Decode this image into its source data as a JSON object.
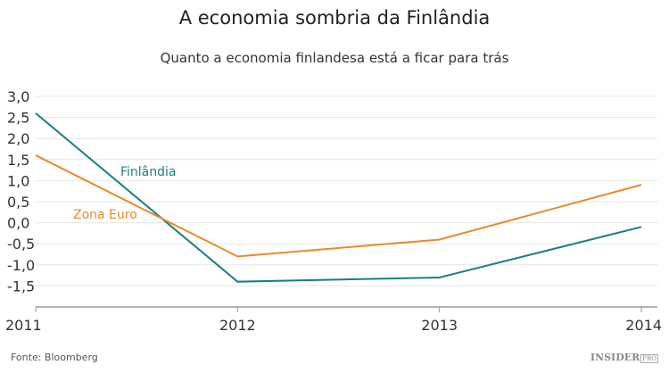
{
  "chart_data": {
    "type": "line",
    "title": "A economia sombria da Finlândia",
    "subtitle": "Quanto a economia finlandesa está a ficar para trás",
    "categories": [
      "2011",
      "2012",
      "2013",
      "2014"
    ],
    "yticks": [
      "3,0",
      "2,5",
      "2,0",
      "1,5",
      "1,0",
      "0,5",
      "0,0",
      "-0,5",
      "-1,0",
      "-1,5"
    ],
    "ylim": [
      -2.0,
      3.0
    ],
    "grid": true,
    "series": [
      {
        "name": "Finlândia",
        "values": [
          2.6,
          -1.4,
          -1.3,
          -0.1
        ],
        "color": "#1a7f80"
      },
      {
        "name": "Zona Euro",
        "values": [
          1.6,
          -0.8,
          -0.4,
          0.9
        ],
        "color": "#e8892e"
      }
    ]
  },
  "source": "Fonte: Bloomberg",
  "logo": "INSIDER PRO"
}
